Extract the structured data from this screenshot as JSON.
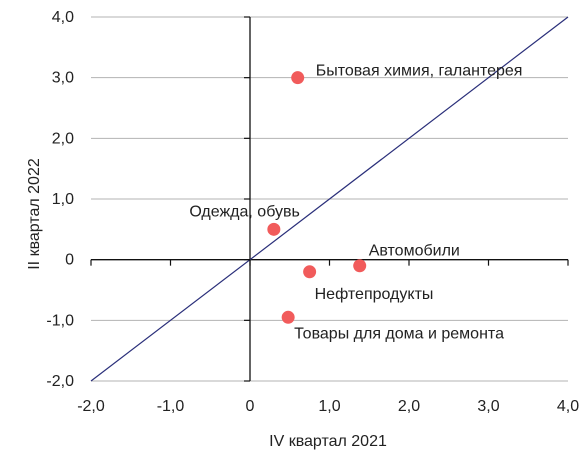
{
  "chart_data": {
    "type": "scatter",
    "xlabel": "IV квартал 2021",
    "ylabel": "II квартал 2022",
    "xlim": [
      -2.0,
      4.0
    ],
    "ylim": [
      -2.0,
      4.0
    ],
    "x_ticks": [
      -2.0,
      -1.0,
      0,
      1.0,
      2.0,
      3.0,
      4.0
    ],
    "y_ticks": [
      -2.0,
      -1.0,
      0,
      1.0,
      2.0,
      3.0,
      4.0
    ],
    "x_tick_labels": [
      "-2,0",
      "-1,0",
      "0",
      "1,0",
      "2,0",
      "3,0",
      "4,0"
    ],
    "y_tick_labels": [
      "-2,0",
      "-1,0",
      "0",
      "1,0",
      "2,0",
      "3,0",
      "4,0"
    ],
    "grid": "horizontal",
    "reference_line": {
      "type": "diagonal",
      "from": [
        -2.0,
        -2.0
      ],
      "to": [
        4.0,
        4.0
      ]
    },
    "points": [
      {
        "label": "Бытовая химия, галантерея",
        "x": 0.6,
        "y": 3.0
      },
      {
        "label": "Одежда, обувь",
        "x": 0.3,
        "y": 0.5
      },
      {
        "label": "Автомобили",
        "x": 1.38,
        "y": -0.1
      },
      {
        "label": "Нефтепродукты",
        "x": 0.75,
        "y": -0.2
      },
      {
        "label": "Товары для дома и ремонта",
        "x": 0.48,
        "y": -0.95
      }
    ],
    "colors": {
      "marker": "#f15b5b",
      "diagonal": "#2a2f7a",
      "grid": "#b3b3b3",
      "axis": "#111111"
    }
  }
}
